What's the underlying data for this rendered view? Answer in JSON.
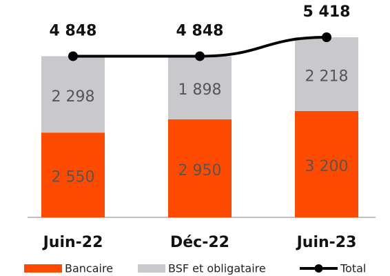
{
  "chart_data": {
    "type": "stacked_bar_line",
    "categories": [
      "Juin-22",
      "Déc-22",
      "Juin-23"
    ],
    "series": [
      {
        "name": "Bancaire",
        "color": "#fe4b00",
        "values": [
          2550,
          2950,
          3200
        ],
        "value_labels": [
          "2 550",
          "2 950",
          "3 200"
        ]
      },
      {
        "name": "BSF et obligataire",
        "color": "#c9c9cd",
        "values": [
          2298,
          1898,
          2218
        ],
        "value_labels": [
          "2 298",
          "1 898",
          "2 218"
        ]
      },
      {
        "name": "Total",
        "color": "#000000",
        "type": "line",
        "values": [
          4848,
          4848,
          5418
        ],
        "value_labels": [
          "4 848",
          "4 848",
          "5 418"
        ]
      }
    ]
  }
}
